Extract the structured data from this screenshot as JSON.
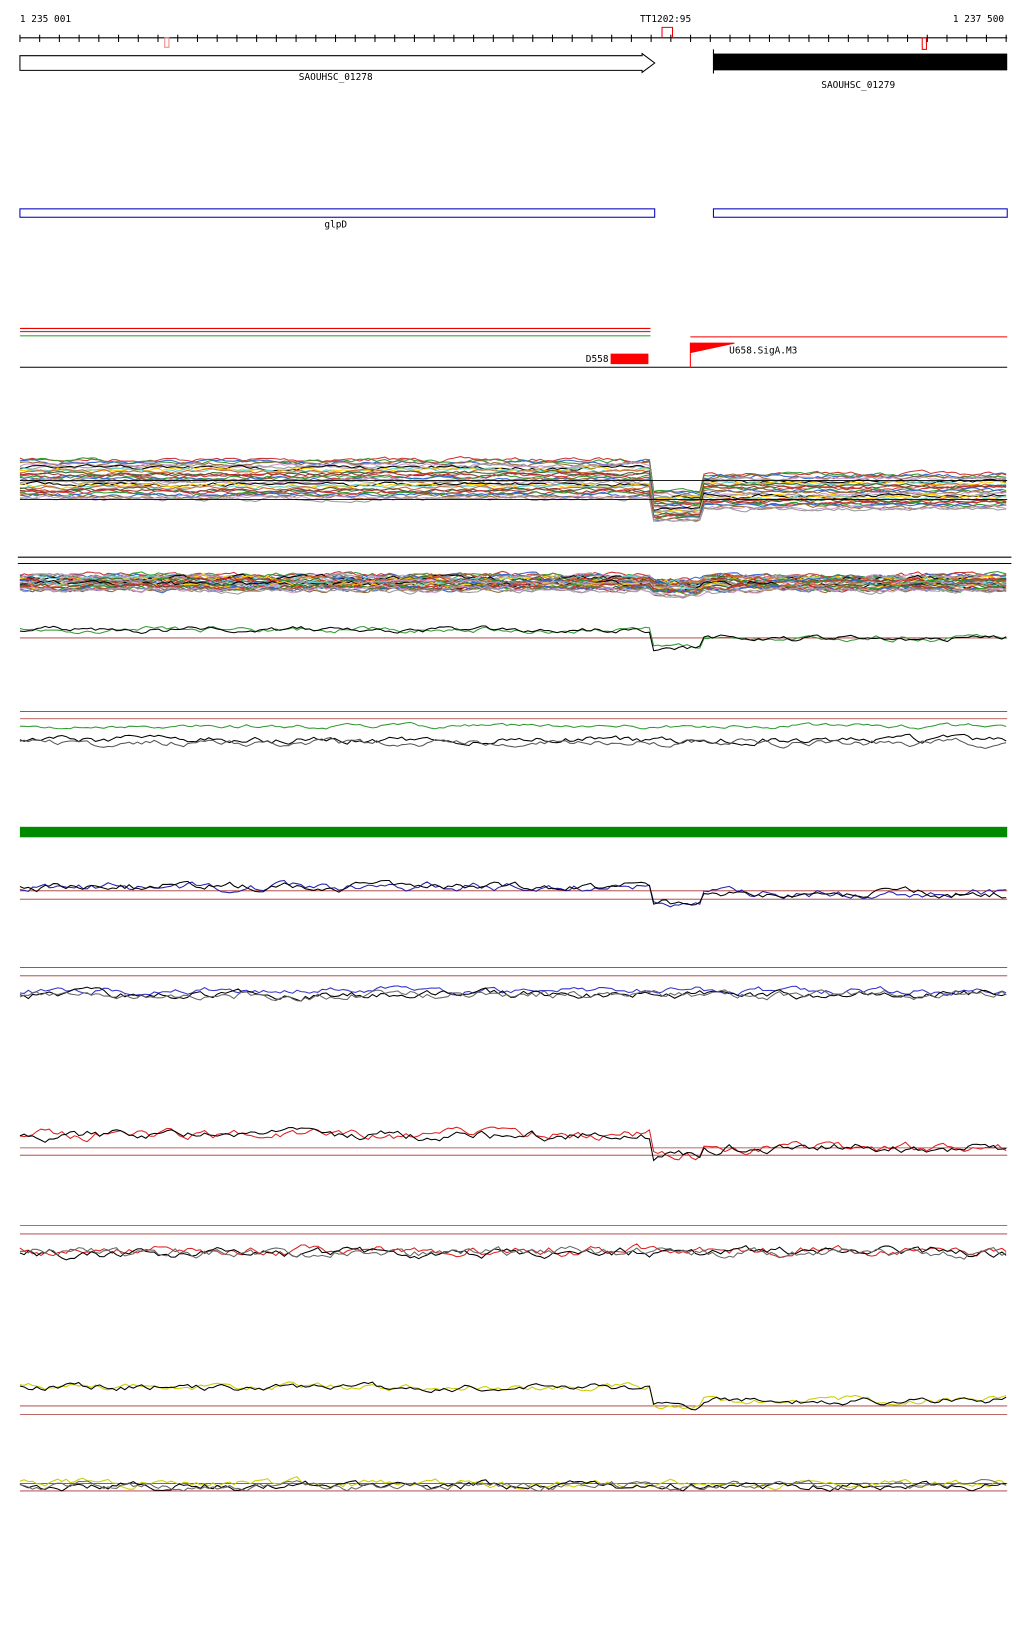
{
  "ruler": {
    "start": "1 235 001",
    "marker": "TT1202:95",
    "end": "1 237 500"
  },
  "genes": [
    {
      "label": "SAOUHSC_01278"
    },
    {
      "label": "SAOUHSC_01279"
    }
  ],
  "operons": [
    {
      "label": "glpD"
    }
  ],
  "features": [
    {
      "label": "D558"
    },
    {
      "label": "U658.SigA.M3"
    }
  ]
}
